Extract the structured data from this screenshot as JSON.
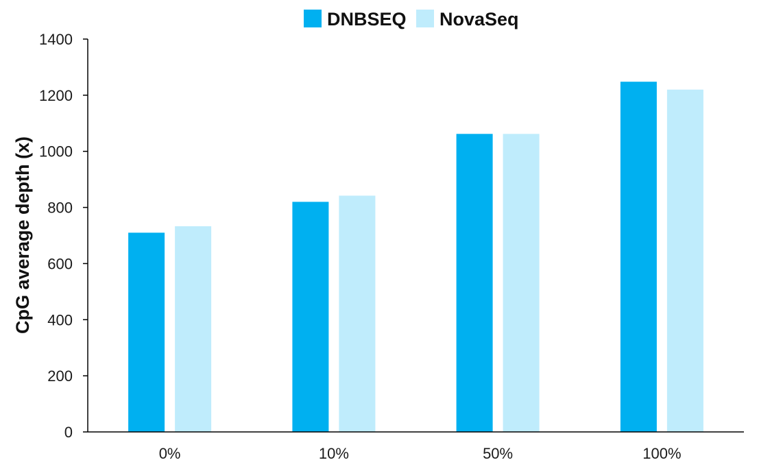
{
  "chart_data": {
    "type": "bar",
    "categories": [
      "0%",
      "10%",
      "50%",
      "100%"
    ],
    "series": [
      {
        "name": "DNBSEQ",
        "color": "#00B0F0",
        "values": [
          710,
          820,
          1062,
          1248
        ]
      },
      {
        "name": "NovaSeq",
        "color": "#BFECFC",
        "values": [
          733,
          842,
          1062,
          1220
        ]
      }
    ],
    "title": "",
    "xlabel": "",
    "ylabel": "CpG average depth (x)",
    "ylim": [
      0,
      1400
    ],
    "yticks": [
      0,
      200,
      400,
      600,
      800,
      1000,
      1200,
      1400
    ],
    "grid": false,
    "legend_position": "top-center"
  }
}
